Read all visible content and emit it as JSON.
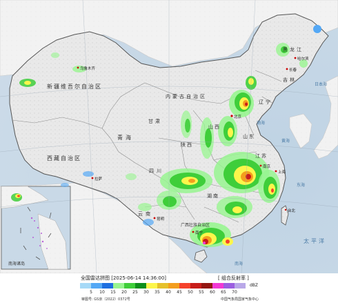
{
  "map": {
    "regions": [
      {
        "name": "新疆维吾尔自治区",
        "id": "xinjiang"
      },
      {
        "name": "西藏自治区",
        "id": "xizang"
      },
      {
        "name": "青海",
        "id": "qinghai"
      },
      {
        "name": "甘肃",
        "id": "gansu"
      },
      {
        "name": "内蒙古自治区",
        "id": "neimenggu"
      },
      {
        "name": "黑龙江",
        "id": "heilongjiang"
      },
      {
        "name": "吉林",
        "id": "jilin"
      },
      {
        "name": "辽宁",
        "id": "liaoning"
      },
      {
        "name": "四川",
        "id": "sichuan"
      },
      {
        "name": "云南",
        "id": "yunnan"
      },
      {
        "name": "陕西",
        "id": "shaanxi"
      },
      {
        "name": "山西",
        "id": "shanxi"
      },
      {
        "name": "山东",
        "id": "shandong"
      },
      {
        "name": "江苏",
        "id": "jiangsu"
      },
      {
        "name": "湖南",
        "id": "hunan"
      },
      {
        "name": "广西壮族自治区",
        "id": "guangxi"
      },
      {
        "name": "南海诸岛",
        "id": "nanhai"
      }
    ],
    "cities": {
      "wulumuqi": "乌鲁木齐",
      "lasa": "拉萨",
      "beijing": "北京",
      "nanjing": "南京",
      "shanghai": "上海",
      "harbin": "哈尔滨",
      "changchun": "长春",
      "nanning": "南宁",
      "taibei": "台北",
      "kunming": "昆明"
    },
    "seas": {
      "bohai": "渤海",
      "huanghai": "黄海",
      "donghai": "东海",
      "taipingyang": "太平洋",
      "nanhai": "南海",
      "riben": "日本海"
    }
  },
  "footer": {
    "title": "全国雷达拼图 [2025-06-14 14:36:00]",
    "product": "[ 组合反射率 ]",
    "unit": "dBZ",
    "approval": "审图号: GS京（2022）0372号",
    "org": "中国气象局国家气象中心"
  },
  "legend": {
    "ticks": [
      "5",
      "10",
      "15",
      "20",
      "25",
      "30",
      "35",
      "40",
      "45",
      "50",
      "55",
      "60",
      "65",
      "70"
    ],
    "colors": [
      "#a6d9f7",
      "#54a8f5",
      "#1e6fe0",
      "#98f590",
      "#3fce3a",
      "#0e8f1b",
      "#fcf64b",
      "#e5c12c",
      "#f39e1e",
      "#f5422b",
      "#c81d1a",
      "#941611",
      "#f238d4",
      "#9b5ee0",
      "#b9a8e8"
    ]
  }
}
